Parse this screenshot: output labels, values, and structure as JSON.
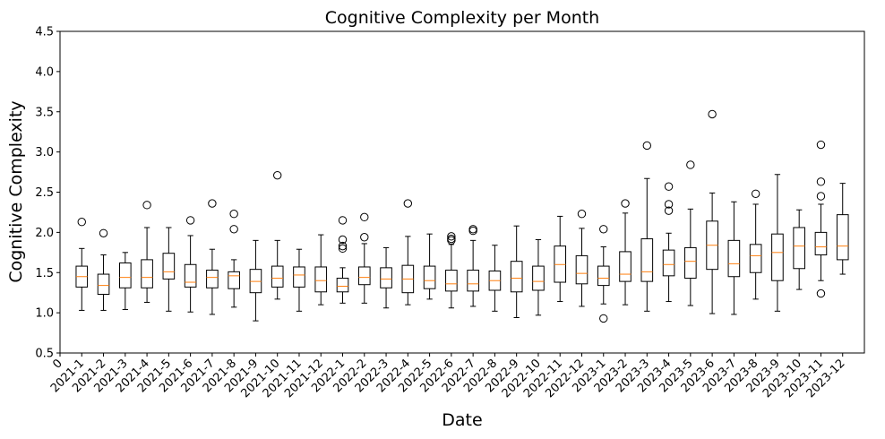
{
  "chart_data": {
    "type": "box",
    "title": "Cognitive Complexity per Month",
    "xlabel": "Date",
    "ylabel": "Cognitive Complexity",
    "ylim": [
      0.5,
      4.5
    ],
    "yticks": [
      "0.5",
      "1.0",
      "1.5",
      "2.0",
      "2.5",
      "3.0",
      "3.5",
      "4.0",
      "4.5"
    ],
    "x_origin_label": "0",
    "grid": false,
    "colors": {
      "box": "#000000",
      "median": "#ff7f0e",
      "flier": "#000000"
    },
    "boxes": [
      {
        "category": "2021-1",
        "whislo": 1.03,
        "q1": 1.32,
        "med": 1.45,
        "q3": 1.58,
        "whishi": 1.8,
        "fliers": [
          2.13
        ]
      },
      {
        "category": "2021-2",
        "whislo": 1.03,
        "q1": 1.23,
        "med": 1.34,
        "q3": 1.48,
        "whishi": 1.72,
        "fliers": [
          1.99
        ]
      },
      {
        "category": "2021-3",
        "whislo": 1.04,
        "q1": 1.31,
        "med": 1.44,
        "q3": 1.62,
        "whishi": 1.75,
        "fliers": []
      },
      {
        "category": "2021-4",
        "whislo": 1.13,
        "q1": 1.31,
        "med": 1.44,
        "q3": 1.66,
        "whishi": 2.06,
        "fliers": [
          2.34
        ]
      },
      {
        "category": "2021-5",
        "whislo": 1.02,
        "q1": 1.42,
        "med": 1.51,
        "q3": 1.74,
        "whishi": 2.06,
        "fliers": []
      },
      {
        "category": "2021-6",
        "whislo": 1.01,
        "q1": 1.32,
        "med": 1.38,
        "q3": 1.6,
        "whishi": 1.96,
        "fliers": [
          2.15
        ]
      },
      {
        "category": "2021-7",
        "whislo": 0.98,
        "q1": 1.31,
        "med": 1.44,
        "q3": 1.53,
        "whishi": 1.79,
        "fliers": [
          2.36
        ]
      },
      {
        "category": "2021-8",
        "whislo": 1.07,
        "q1": 1.3,
        "med": 1.46,
        "q3": 1.51,
        "whishi": 1.66,
        "fliers": [
          2.04,
          2.23
        ]
      },
      {
        "category": "2021-9",
        "whislo": 0.9,
        "q1": 1.25,
        "med": 1.39,
        "q3": 1.54,
        "whishi": 1.9,
        "fliers": []
      },
      {
        "category": "2021-10",
        "whislo": 1.17,
        "q1": 1.32,
        "med": 1.43,
        "q3": 1.58,
        "whishi": 1.9,
        "fliers": [
          2.71
        ]
      },
      {
        "category": "2021-11",
        "whislo": 1.02,
        "q1": 1.32,
        "med": 1.47,
        "q3": 1.57,
        "whishi": 1.79,
        "fliers": []
      },
      {
        "category": "2021-12",
        "whislo": 1.1,
        "q1": 1.26,
        "med": 1.4,
        "q3": 1.57,
        "whishi": 1.97,
        "fliers": []
      },
      {
        "category": "2022-1",
        "whislo": 1.12,
        "q1": 1.26,
        "med": 1.33,
        "q3": 1.43,
        "whishi": 1.56,
        "fliers": [
          1.8,
          1.83,
          1.91,
          2.15
        ]
      },
      {
        "category": "2022-2",
        "whislo": 1.12,
        "q1": 1.35,
        "med": 1.44,
        "q3": 1.57,
        "whishi": 1.86,
        "fliers": [
          1.94,
          2.19
        ]
      },
      {
        "category": "2022-3",
        "whislo": 1.06,
        "q1": 1.31,
        "med": 1.42,
        "q3": 1.56,
        "whishi": 1.81,
        "fliers": []
      },
      {
        "category": "2022-4",
        "whislo": 1.1,
        "q1": 1.25,
        "med": 1.42,
        "q3": 1.59,
        "whishi": 1.95,
        "fliers": [
          2.36
        ]
      },
      {
        "category": "2022-5",
        "whislo": 1.17,
        "q1": 1.3,
        "med": 1.4,
        "q3": 1.58,
        "whishi": 1.98,
        "fliers": []
      },
      {
        "category": "2022-6",
        "whislo": 1.06,
        "q1": 1.27,
        "med": 1.36,
        "q3": 1.53,
        "whishi": 1.85,
        "fliers": [
          1.9,
          1.92,
          1.95
        ]
      },
      {
        "category": "2022-7",
        "whislo": 1.08,
        "q1": 1.27,
        "med": 1.36,
        "q3": 1.53,
        "whishi": 1.9,
        "fliers": [
          2.02,
          2.04
        ]
      },
      {
        "category": "2022-8",
        "whislo": 1.02,
        "q1": 1.28,
        "med": 1.4,
        "q3": 1.52,
        "whishi": 1.84,
        "fliers": []
      },
      {
        "category": "2022-9",
        "whislo": 0.94,
        "q1": 1.26,
        "med": 1.43,
        "q3": 1.64,
        "whishi": 2.08,
        "fliers": []
      },
      {
        "category": "2022-10",
        "whislo": 0.97,
        "q1": 1.28,
        "med": 1.39,
        "q3": 1.58,
        "whishi": 1.91,
        "fliers": []
      },
      {
        "category": "2022-11",
        "whislo": 1.14,
        "q1": 1.38,
        "med": 1.6,
        "q3": 1.83,
        "whishi": 2.2,
        "fliers": []
      },
      {
        "category": "2022-12",
        "whislo": 1.08,
        "q1": 1.36,
        "med": 1.49,
        "q3": 1.71,
        "whishi": 2.05,
        "fliers": [
          2.23
        ]
      },
      {
        "category": "2023-1",
        "whislo": 1.11,
        "q1": 1.34,
        "med": 1.43,
        "q3": 1.58,
        "whishi": 1.82,
        "fliers": [
          0.93,
          2.04
        ]
      },
      {
        "category": "2023-2",
        "whislo": 1.1,
        "q1": 1.39,
        "med": 1.48,
        "q3": 1.76,
        "whishi": 2.24,
        "fliers": [
          2.36
        ]
      },
      {
        "category": "2023-3",
        "whislo": 1.02,
        "q1": 1.39,
        "med": 1.51,
        "q3": 1.92,
        "whishi": 2.67,
        "fliers": [
          3.08
        ]
      },
      {
        "category": "2023-4",
        "whislo": 1.14,
        "q1": 1.46,
        "med": 1.6,
        "q3": 1.78,
        "whishi": 1.99,
        "fliers": [
          2.27,
          2.35,
          2.57
        ]
      },
      {
        "category": "2023-5",
        "whislo": 1.09,
        "q1": 1.43,
        "med": 1.64,
        "q3": 1.81,
        "whishi": 2.29,
        "fliers": [
          2.84
        ]
      },
      {
        "category": "2023-6",
        "whislo": 0.99,
        "q1": 1.54,
        "med": 1.84,
        "q3": 2.14,
        "whishi": 2.49,
        "fliers": [
          3.47
        ]
      },
      {
        "category": "2023-7",
        "whislo": 0.98,
        "q1": 1.45,
        "med": 1.61,
        "q3": 1.9,
        "whishi": 2.38,
        "fliers": []
      },
      {
        "category": "2023-8",
        "whislo": 1.17,
        "q1": 1.5,
        "med": 1.71,
        "q3": 1.85,
        "whishi": 2.35,
        "fliers": [
          2.48
        ]
      },
      {
        "category": "2023-9",
        "whislo": 1.02,
        "q1": 1.4,
        "med": 1.75,
        "q3": 1.98,
        "whishi": 2.72,
        "fliers": []
      },
      {
        "category": "2023-10",
        "whislo": 1.29,
        "q1": 1.55,
        "med": 1.83,
        "q3": 2.06,
        "whishi": 2.28,
        "fliers": []
      },
      {
        "category": "2023-11",
        "whislo": 1.4,
        "q1": 1.72,
        "med": 1.82,
        "q3": 2.0,
        "whishi": 2.35,
        "fliers": [
          1.24,
          2.45,
          2.63,
          3.09
        ]
      },
      {
        "category": "2023-12",
        "whislo": 1.48,
        "q1": 1.66,
        "med": 1.83,
        "q3": 2.22,
        "whishi": 2.61,
        "fliers": []
      }
    ]
  }
}
